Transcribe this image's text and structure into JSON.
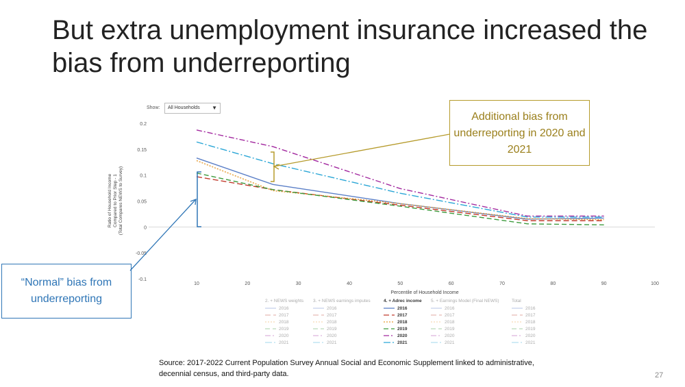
{
  "slide": {
    "title": "But extra unemployment insurance increased the bias from underreporting",
    "page_number": "27",
    "source": "Source: 2017-2022  Current Population Survey Annual Social and Economic Supplement linked to administrative, decennial census, and third-party data."
  },
  "controls": {
    "show_label": "Show:",
    "dropdown_value": "All Households"
  },
  "callouts": {
    "additional": "Additional bias from underreporting in 2020 and 2021",
    "normal": "“Normal” bias from underreporting"
  },
  "legend": {
    "groups": [
      {
        "title": "2. + NEWS weights",
        "active": false
      },
      {
        "title": "3. + NEWS earnings imputes",
        "active": false
      },
      {
        "title": "4. + Adrec income",
        "active": true
      },
      {
        "title": "5. + Earnings Model (Final NEWS)",
        "active": false
      },
      {
        "title": "Total",
        "active": false
      }
    ],
    "years": [
      "2016",
      "2017",
      "2018",
      "2019",
      "2020",
      "2021"
    ]
  },
  "chart_data": {
    "type": "line",
    "xlabel": "Percentile of Household Income",
    "ylabel": "Ratio of Household Income Compared to Prior Step - 1 (Total Compares NEWS to Survey)",
    "xlim": [
      10,
      100
    ],
    "ylim": [
      -0.1,
      0.2
    ],
    "xticks": [
      "10",
      "20",
      "30",
      "40",
      "50",
      "60",
      "70",
      "80",
      "90",
      "100"
    ],
    "yticks": [
      "0.2",
      "0.15",
      "0.1",
      "0.05",
      "0",
      "-0.05",
      "-0.1"
    ],
    "x": [
      10,
      25,
      50,
      75,
      90
    ],
    "series": [
      {
        "name": "2016",
        "color": "#5b7fc7",
        "dash": "solid",
        "values": [
          0.133,
          0.082,
          0.045,
          0.015,
          0.017
        ]
      },
      {
        "name": "2017",
        "color": "#c0392b",
        "dash": "8,4",
        "values": [
          0.097,
          0.072,
          0.042,
          0.012,
          0.012
        ]
      },
      {
        "name": "2018",
        "color": "#e69a2e",
        "dash": "2,2",
        "values": [
          0.128,
          0.07,
          0.045,
          0.016,
          0.014
        ]
      },
      {
        "name": "2019",
        "color": "#3c9a3c",
        "dash": "7,4",
        "values": [
          0.104,
          0.072,
          0.04,
          0.006,
          0.004
        ]
      },
      {
        "name": "2020",
        "color": "#a2289f",
        "dash": "8,3,2,3",
        "values": [
          0.187,
          0.155,
          0.074,
          0.021,
          0.021
        ]
      },
      {
        "name": "2021",
        "color": "#2aa6d6",
        "dash": "10,3,2,3",
        "values": [
          0.164,
          0.122,
          0.065,
          0.019,
          0.019
        ]
      }
    ],
    "legend_position": "bottom"
  }
}
